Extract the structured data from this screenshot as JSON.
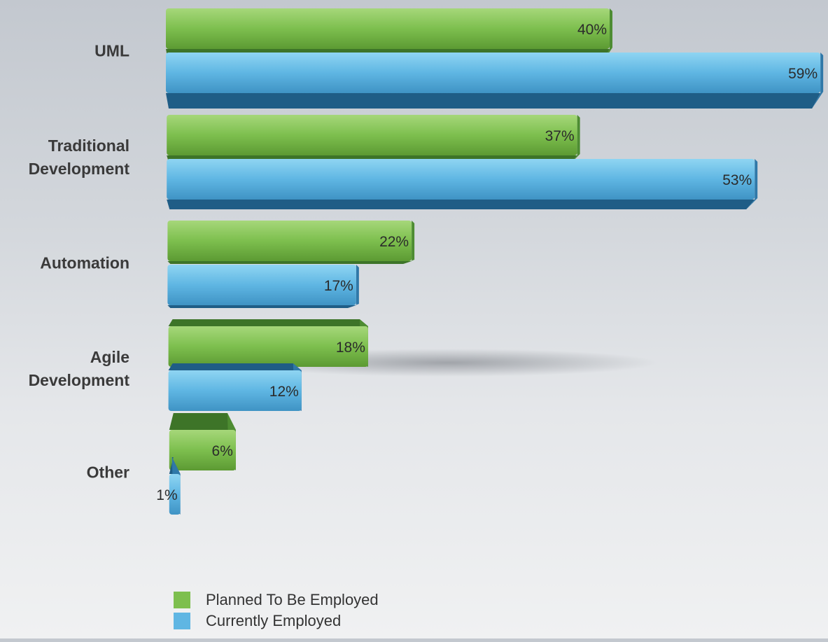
{
  "chart_data": {
    "type": "bar",
    "orientation": "horizontal",
    "categories": [
      "UML",
      "Traditional\nDevelopment",
      "Automation",
      "Agile\nDevelopment",
      "Other"
    ],
    "series": [
      {
        "name": "Planned To Be Employed",
        "color": "#7dbf4e",
        "values": [
          40,
          37,
          22,
          18,
          6
        ],
        "labels": [
          "40%",
          "37%",
          "22%",
          "18%",
          "6%"
        ]
      },
      {
        "name": "Currently Employed",
        "color": "#5fb6e3",
        "values": [
          59,
          53,
          17,
          12,
          1
        ],
        "labels": [
          "59%",
          "53%",
          "17%",
          "12%",
          "1%"
        ]
      }
    ],
    "value_unit": "%",
    "grid": false,
    "legend_position": "bottom",
    "style": "3d-perspective"
  }
}
